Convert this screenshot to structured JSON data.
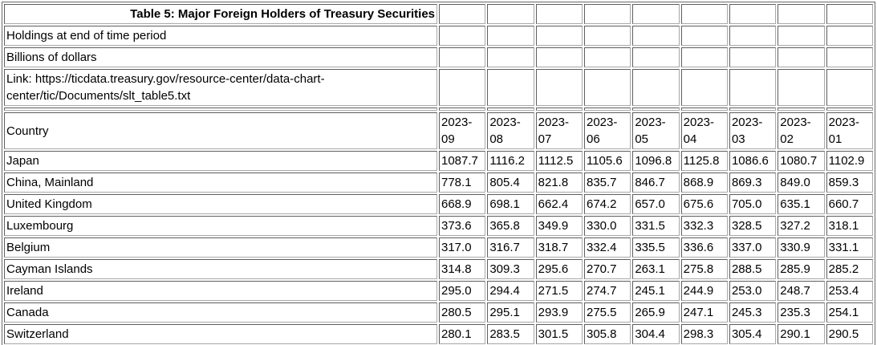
{
  "table": {
    "title": "Table 5: Major Foreign Holders of Treasury Securities",
    "subtitle_holdings": "Holdings at end of time period",
    "subtitle_units": "Billions of dollars",
    "link_line": "Link: https://ticdata.treasury.gov/resource-center/data-chart-center/tic/Documents/slt_table5.txt",
    "header": {
      "country_label": "Country",
      "periods": [
        "2023-09",
        "2023-08",
        "2023-07",
        "2023-06",
        "2023-05",
        "2023-04",
        "2023-03",
        "2023-02",
        "2023-01"
      ]
    },
    "rows": [
      {
        "country": "Japan",
        "values": [
          "1087.7",
          "1116.2",
          "1112.5",
          "1105.6",
          "1096.8",
          "1125.8",
          "1086.6",
          "1080.7",
          "1102.9"
        ]
      },
      {
        "country": "China, Mainland",
        "values": [
          "778.1",
          "805.4",
          "821.8",
          "835.7",
          "846.7",
          "868.9",
          "869.3",
          "849.0",
          "859.3"
        ]
      },
      {
        "country": "United Kingdom",
        "values": [
          "668.9",
          "698.1",
          "662.4",
          "674.2",
          "657.0",
          "675.6",
          "705.0",
          "635.1",
          "660.7"
        ]
      },
      {
        "country": "Luxembourg",
        "values": [
          "373.6",
          "365.8",
          "349.9",
          "330.0",
          "331.5",
          "332.3",
          "328.5",
          "327.2",
          "318.1"
        ]
      },
      {
        "country": "Belgium",
        "values": [
          "317.0",
          "316.7",
          "318.7",
          "332.4",
          "335.5",
          "336.6",
          "337.0",
          "330.9",
          "331.1"
        ]
      },
      {
        "country": "Cayman Islands",
        "values": [
          "314.8",
          "309.3",
          "295.6",
          "270.7",
          "263.1",
          "275.8",
          "288.5",
          "285.9",
          "285.2"
        ]
      },
      {
        "country": "Ireland",
        "values": [
          "295.0",
          "294.4",
          "271.5",
          "274.7",
          "245.1",
          "244.9",
          "253.0",
          "248.7",
          "253.4"
        ]
      },
      {
        "country": "Canada",
        "values": [
          "280.5",
          "295.1",
          "293.9",
          "275.5",
          "265.9",
          "247.1",
          "245.3",
          "235.3",
          "254.1"
        ]
      },
      {
        "country": "Switzerland",
        "values": [
          "280.1",
          "283.5",
          "301.5",
          "305.8",
          "304.4",
          "298.3",
          "305.4",
          "290.1",
          "290.5"
        ]
      }
    ],
    "colors": {
      "text": "#000000",
      "background": "#ffffff",
      "border_dark": "#5e5e5e",
      "border_light": "#a8a8a8",
      "outer_border": "#696969"
    }
  }
}
